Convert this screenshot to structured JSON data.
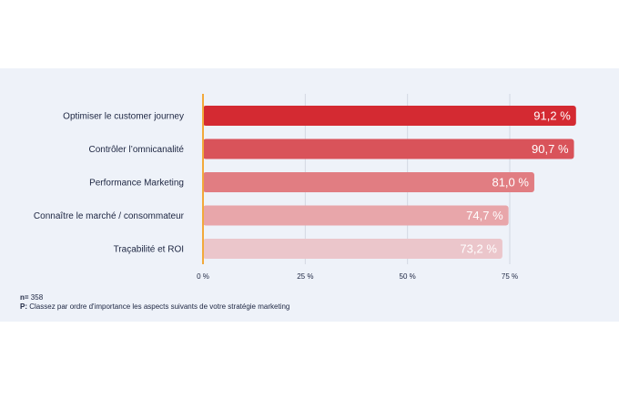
{
  "chart_data": {
    "type": "bar",
    "orientation": "horizontal",
    "categories": [
      "Optimiser le customer journey",
      "Contrôler l’omnicanalité",
      "Performance Marketing",
      "Connaître le marché / consommateur",
      "Traçabilité et ROI"
    ],
    "values": [
      91.2,
      90.7,
      81.0,
      74.7,
      73.2
    ],
    "value_labels": [
      "91,2 %",
      "90,7 %",
      "81,0 %",
      "74,7 %",
      "73,2 %"
    ],
    "bar_colors": [
      "#d42a32",
      "#d9535a",
      "#e17d82",
      "#e8a6aa",
      "#ebc6cb"
    ],
    "value_label_colors": [
      "#ffffff",
      "#ffffff",
      "#ffffff",
      "#ffffff",
      "#ffffff"
    ],
    "xlim": [
      0,
      100
    ],
    "xticks": [
      0,
      25,
      50,
      75
    ],
    "xtick_labels": [
      "0 %",
      "25 %",
      "50 %",
      "75 %"
    ],
    "axis_color": "#f2a93b",
    "grid": true
  },
  "footnote": {
    "n_label": "n=",
    "n_value": "358",
    "p_label": "P:",
    "p_text": "Classez par ordre d'importance les aspects suivants de votre stratégie marketing"
  }
}
